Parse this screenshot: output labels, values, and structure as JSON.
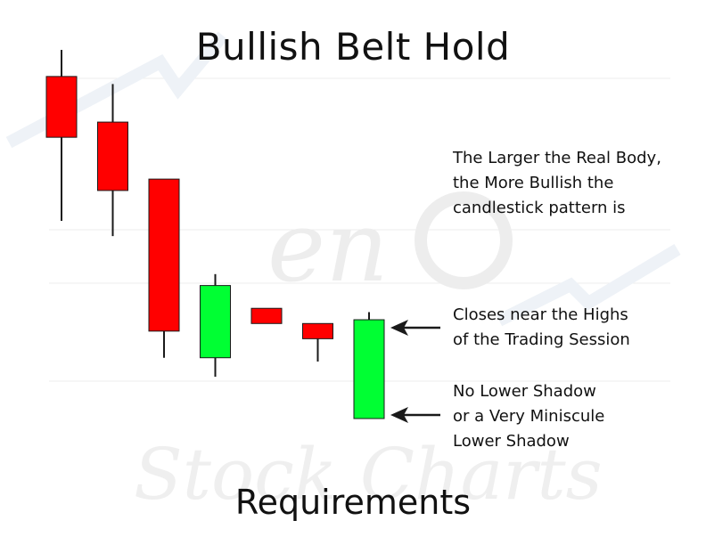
{
  "title": "Bullish Belt Hold",
  "footer": "Requirements",
  "notes": {
    "body": [
      "The Larger the Real Body,",
      "the More Bullish the",
      "candlestick pattern is"
    ],
    "high": [
      "Closes near the Highs",
      "of the Trading Session"
    ],
    "shadow": [
      "No Lower Shadow",
      "or a Very Miniscule",
      "Lower Shadow"
    ]
  },
  "watermark": {
    "line1": "en",
    "line2": "Stock Charts"
  },
  "colors": {
    "bearish": "#ff0000",
    "bullish": "#00ff33",
    "outline": "#1a1a1a",
    "arrow": "#1a1a1a",
    "watermark": "#e6e6e6"
  },
  "candles": [
    {
      "direction": "bearish",
      "open": 83,
      "close": 67,
      "high": 90,
      "low": 45
    },
    {
      "direction": "bearish",
      "open": 71,
      "close": 53,
      "high": 81,
      "low": 41
    },
    {
      "direction": "bearish",
      "open": 56,
      "close": 16,
      "high": 56,
      "low": 9
    },
    {
      "direction": "bullish",
      "open": 9,
      "close": 28,
      "high": 31,
      "low": 4
    },
    {
      "direction": "bearish",
      "open": 22,
      "close": 18,
      "high": 22,
      "low": 18
    },
    {
      "direction": "bearish",
      "open": 18,
      "close": 14,
      "high": 18,
      "low": 8
    },
    {
      "direction": "bullish",
      "open": -7,
      "close": 19,
      "high": 21,
      "low": -7
    }
  ]
}
